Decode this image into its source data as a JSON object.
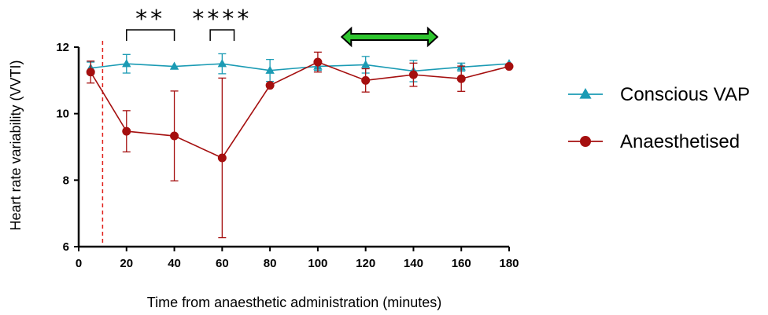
{
  "chart_data": {
    "type": "line",
    "xlabel": "Time from anaesthetic administration (minutes)",
    "ylabel": "Heart rate variability (VVTI)",
    "xlim": [
      0,
      180
    ],
    "ylim": [
      6,
      12
    ],
    "xticks": [
      0,
      20,
      40,
      60,
      80,
      100,
      120,
      140,
      160,
      180
    ],
    "yticks": [
      6,
      8,
      10,
      12
    ],
    "grid": false,
    "legend_position": "right",
    "reference_line_x": 10,
    "reference_line_color": "#e0201b",
    "series": [
      {
        "name": "Conscious VAP",
        "marker": "triangle",
        "color": "#1b9bb4",
        "points": [
          {
            "x": 5,
            "y": 11.37,
            "err": 0.18
          },
          {
            "x": 20,
            "y": 11.5,
            "err": 0.28
          },
          {
            "x": 40,
            "y": 11.42,
            "err": 0.0
          },
          {
            "x": 60,
            "y": 11.5,
            "err": 0.3
          },
          {
            "x": 80,
            "y": 11.3,
            "err": 0.33
          },
          {
            "x": 100,
            "y": 11.42,
            "err": 0.12
          },
          {
            "x": 120,
            "y": 11.47,
            "err": 0.25
          },
          {
            "x": 140,
            "y": 11.28,
            "err": 0.32
          },
          {
            "x": 160,
            "y": 11.4,
            "err": 0.12
          },
          {
            "x": 180,
            "y": 11.5,
            "err": 0.0
          }
        ]
      },
      {
        "name": "Anaesthetised",
        "marker": "circle",
        "color": "#a50f0f",
        "points": [
          {
            "x": 5,
            "y": 11.25,
            "err": 0.33
          },
          {
            "x": 20,
            "y": 9.47,
            "err": 0.62
          },
          {
            "x": 40,
            "y": 9.33,
            "err": 1.35
          },
          {
            "x": 60,
            "y": 8.67,
            "err": 2.4
          },
          {
            "x": 80,
            "y": 10.85,
            "err": 0.0
          },
          {
            "x": 100,
            "y": 11.55,
            "err": 0.3
          },
          {
            "x": 120,
            "y": 11.0,
            "err": 0.35
          },
          {
            "x": 140,
            "y": 11.17,
            "err": 0.35
          },
          {
            "x": 160,
            "y": 11.05,
            "err": 0.38
          },
          {
            "x": 180,
            "y": 11.42,
            "err": 0.0
          }
        ]
      }
    ],
    "significance": [
      {
        "label": "**",
        "x_start": 20,
        "x_end": 40
      },
      {
        "label": "****",
        "x_start": 55,
        "x_end": 65
      }
    ],
    "range_arrow": {
      "x_start": 110,
      "x_end": 150,
      "color": "#2ec52e"
    }
  }
}
